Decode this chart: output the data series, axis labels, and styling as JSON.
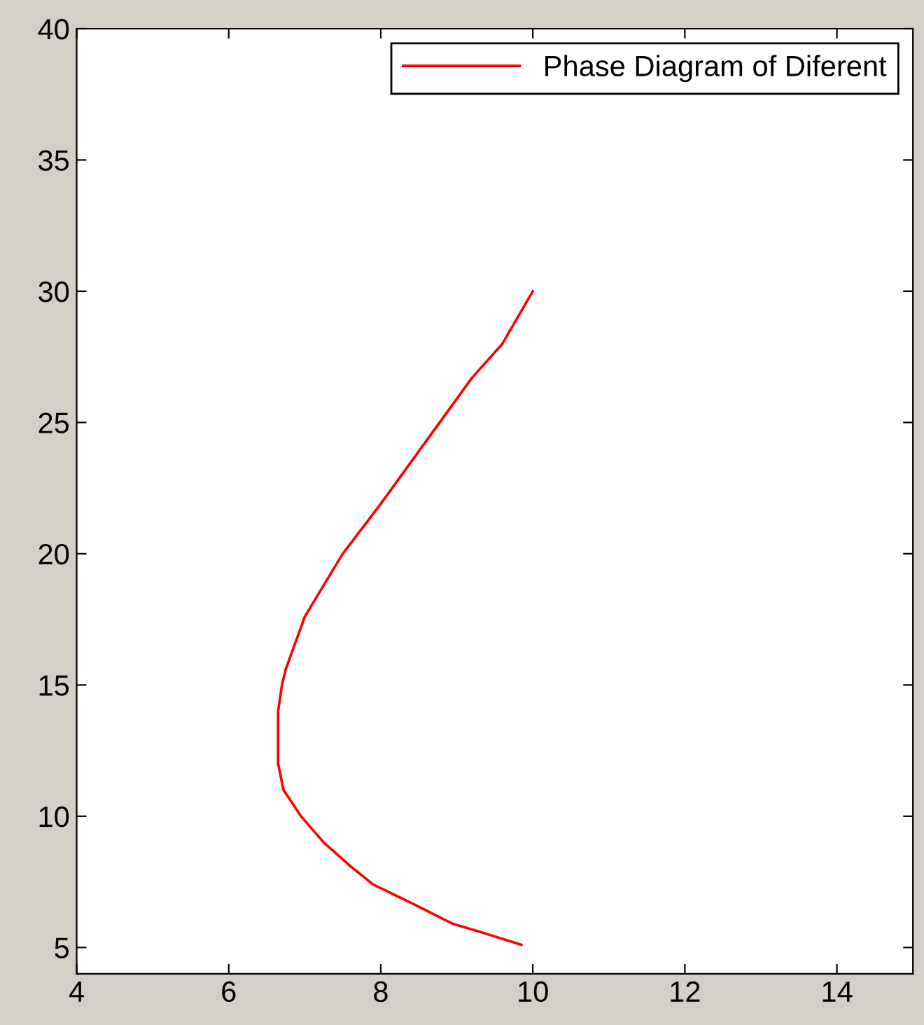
{
  "chart_data": {
    "type": "line",
    "legend": "top right",
    "grid": false,
    "marker": "none",
    "line_style": "solid",
    "xlim": [
      4,
      15
    ],
    "xticks": [
      4,
      6,
      8,
      10,
      12,
      14
    ],
    "ylim": [
      4,
      40
    ],
    "yticks": [
      5,
      10,
      15,
      20,
      25,
      30,
      35,
      40
    ],
    "series": [
      {
        "name": "Phase Diagram of Diferent",
        "color": "#ff0000",
        "x": [
          10.0,
          9.6,
          9.2,
          8.8,
          8.4,
          8.0,
          7.5,
          7.0,
          6.75,
          6.7,
          6.65,
          6.65,
          6.72,
          6.95,
          7.25,
          7.6,
          7.9,
          8.4,
          8.95,
          9.3,
          9.85
        ],
        "values": [
          30.0,
          28.0,
          26.7,
          25.1,
          23.5,
          21.9,
          20.0,
          17.6,
          15.6,
          15.0,
          14.0,
          12.0,
          11.0,
          10.0,
          9.0,
          8.1,
          7.4,
          6.7,
          5.9,
          5.6,
          5.1
        ]
      }
    ]
  }
}
